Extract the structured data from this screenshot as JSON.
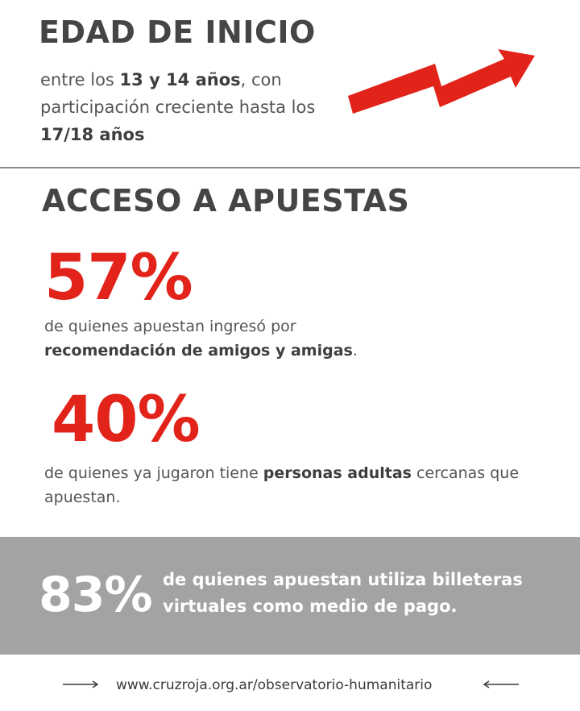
{
  "section1": {
    "title": "EDAD DE INICIO",
    "intro": {
      "part1": "entre los ",
      "bold1": "13 y 14 años",
      "part2": ", con participación creciente hasta los ",
      "bold2": "17/18 años"
    },
    "trend_icon": "rising-zigzag-arrow-icon"
  },
  "section2": {
    "title": "ACCESO A APUESTAS",
    "stat1": {
      "value": "57%",
      "text_plain": "de quienes apuestan ingresó por ",
      "text_bold": "recomendación de amigos y amigas",
      "text_end": "."
    },
    "stat2": {
      "value": "40%",
      "text_plain": "de quienes ya jugaron tiene ",
      "text_bold": "personas adultas",
      "text_end": " cercanas que apuestan."
    }
  },
  "band": {
    "value": "83%",
    "text": "de quienes apuestan utiliza billeteras virtuales como medio de pago."
  },
  "footer": {
    "url": "www.cruzroja.org.ar/observatorio-humanitario"
  },
  "colors": {
    "accent": "#e2231a",
    "heading": "#454545",
    "band": "#a3a3a3"
  }
}
